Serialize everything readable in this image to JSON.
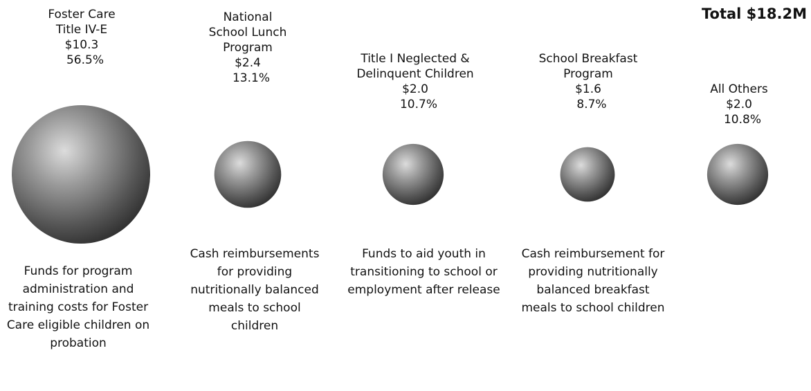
{
  "total": "Total $18.2M",
  "chart_data": {
    "type": "bubble",
    "categories": [
      "Foster Care Title IV-E",
      "National School Lunch Program",
      "Title I Neglected & Delinquent Children",
      "School Breakfast Program",
      "All Others"
    ],
    "values": [
      10.3,
      2.4,
      2.0,
      1.6,
      2.0
    ],
    "percents": [
      56.5,
      13.1,
      10.7,
      8.7,
      10.8
    ]
  },
  "items": [
    {
      "name_lines": [
        "Foster Care",
        "Title IV-E"
      ],
      "value": "$10.3",
      "pct": "56.5%",
      "description": "Funds for program administration and training costs for Foster Care eligible children on probation"
    },
    {
      "name_lines": [
        "National",
        "School Lunch",
        "Program"
      ],
      "value": "$2.4",
      "pct": "13.1%",
      "description": "Cash reimbursements for providing nutritionally balanced meals to school children"
    },
    {
      "name_lines": [
        "Title I Neglected &",
        "Delinquent Children"
      ],
      "value": "$2.0",
      "pct": "10.7%",
      "description": "Funds to aid youth in transitioning to school or employment after release"
    },
    {
      "name_lines": [
        "School Breakfast",
        "Program"
      ],
      "value": "$1.6",
      "pct": "8.7%",
      "description": "Cash reimbursement for providing nutritionally balanced breakfast meals to school children"
    },
    {
      "name_lines": [
        "All Others"
      ],
      "value": "$2.0",
      "pct": "10.8%",
      "description": ""
    }
  ]
}
